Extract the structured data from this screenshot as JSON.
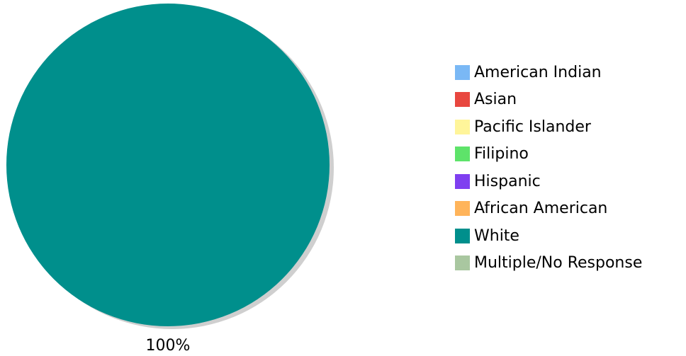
{
  "chart_data": {
    "type": "pie",
    "title": "",
    "categories": [
      "American Indian",
      "Asian",
      "Pacific Islander",
      "Filipino",
      "Hispanic",
      "African American",
      "White",
      "Multiple/No Response"
    ],
    "values": [
      0,
      0,
      0,
      0,
      0,
      0,
      100,
      0
    ],
    "colors": [
      "#7ab8f5",
      "#e8473f",
      "#fff59a",
      "#5ee36a",
      "#7f3ff0",
      "#ffb45a",
      "#008f8c",
      "#a9c7a0"
    ],
    "data_labels": [
      "",
      "",
      "",
      "",
      "",
      "",
      "100%",
      ""
    ],
    "legend_position": "right",
    "shadow": true
  }
}
